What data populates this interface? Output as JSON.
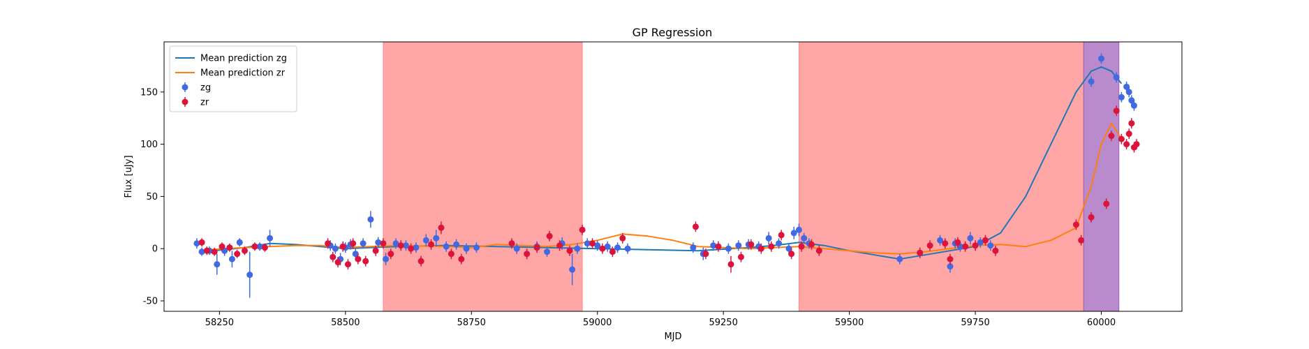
{
  "chart_data": {
    "type": "scatter",
    "title": "GP Regression",
    "xlabel": "MJD",
    "ylabel": "Flux [uJy]",
    "xlim": [
      58140,
      60160
    ],
    "ylim": [
      -60,
      198
    ],
    "xticks": [
      58250,
      58500,
      58750,
      59000,
      59250,
      59500,
      59750,
      60000
    ],
    "yticks": [
      -50,
      0,
      50,
      100,
      150
    ],
    "grid": false,
    "legend_position": "top-left",
    "shaded_regions": [
      {
        "x0": 58575,
        "x1": 58970,
        "color": "#ff8080"
      },
      {
        "x0": 59400,
        "x1": 59965,
        "color": "#ff8080"
      },
      {
        "x0": 59965,
        "x1": 60035,
        "color": "#9b59b6"
      }
    ],
    "lines": [
      {
        "name": "Mean prediction zg",
        "color": "#1f77b4",
        "x": [
          58210,
          58260,
          58300,
          58350,
          58400,
          58450,
          58500,
          58550,
          58600,
          58700,
          58800,
          58900,
          59000,
          59100,
          59200,
          59300,
          59350,
          59400,
          59450,
          59500,
          59550,
          59600,
          59650,
          59700,
          59750,
          59800,
          59850,
          59900,
          59950,
          59980,
          60000,
          60020,
          60040
        ],
        "y": [
          -3,
          -1,
          1,
          5,
          4,
          2,
          0,
          1,
          2,
          3,
          2,
          1,
          0,
          -1,
          -2,
          1,
          3,
          6,
          3,
          -2,
          -6,
          -10,
          -6,
          -2,
          2,
          15,
          50,
          100,
          150,
          170,
          174,
          170,
          158
        ]
      },
      {
        "name": "Mean prediction zr",
        "color": "#ff7f0e",
        "x": [
          58210,
          58260,
          58300,
          58350,
          58400,
          58450,
          58500,
          58550,
          58600,
          58700,
          58750,
          58800,
          58900,
          58950,
          59000,
          59050,
          59100,
          59150,
          59200,
          59250,
          59300,
          59350,
          59400,
          59450,
          59500,
          59550,
          59600,
          59650,
          59700,
          59750,
          59800,
          59850,
          59900,
          59950,
          59980,
          60000,
          60020,
          60040
        ],
        "y": [
          -2,
          0,
          1,
          2,
          3,
          3,
          1,
          2,
          3,
          2,
          1,
          4,
          2,
          4,
          8,
          14,
          12,
          8,
          2,
          1,
          0,
          1,
          2,
          0,
          -2,
          -4,
          -5,
          -3,
          0,
          3,
          4,
          2,
          8,
          20,
          60,
          100,
          120,
          105
        ]
      }
    ],
    "series": [
      {
        "name": "zg",
        "color": "#4169e1",
        "x": [
          58205,
          58215,
          58230,
          58245,
          58260,
          58275,
          58290,
          58310,
          58330,
          58350,
          58470,
          58480,
          58490,
          58500,
          58510,
          58520,
          58535,
          58550,
          58565,
          58580,
          58600,
          58620,
          58640,
          58660,
          58680,
          58700,
          58720,
          58740,
          58760,
          58840,
          58880,
          58900,
          58930,
          58950,
          58960,
          58980,
          59000,
          59020,
          59040,
          59060,
          59190,
          59210,
          59230,
          59260,
          59280,
          59300,
          59320,
          59340,
          59360,
          59380,
          59390,
          59400,
          59410,
          59420,
          59600,
          59640,
          59680,
          59700,
          59710,
          59720,
          59740,
          59760,
          59780,
          59980,
          60000,
          60030,
          60040,
          60050,
          60055,
          60060,
          60065
        ],
        "y": [
          5,
          -3,
          -2,
          -15,
          -2,
          -10,
          6,
          -25,
          2,
          10,
          3,
          0,
          -10,
          1,
          4,
          -5,
          5,
          28,
          6,
          -10,
          5,
          3,
          1,
          8,
          10,
          2,
          4,
          0,
          1,
          0,
          2,
          -3,
          5,
          -20,
          0,
          5,
          3,
          2,
          1,
          0,
          1,
          -5,
          3,
          0,
          3,
          4,
          2,
          10,
          5,
          0,
          15,
          18,
          10,
          5,
          -10,
          -4,
          8,
          -17,
          5,
          2,
          10,
          6,
          3,
          160,
          182,
          164,
          145,
          155,
          150,
          142,
          137
        ],
        "yerr": [
          5,
          4,
          4,
          10,
          5,
          8,
          4,
          22,
          4,
          8,
          5,
          5,
          6,
          5,
          5,
          5,
          5,
          8,
          5,
          6,
          5,
          5,
          5,
          6,
          8,
          5,
          5,
          5,
          5,
          5,
          5,
          5,
          6,
          15,
          5,
          5,
          5,
          5,
          5,
          5,
          5,
          6,
          5,
          5,
          5,
          5,
          5,
          6,
          5,
          5,
          6,
          6,
          5,
          5,
          5,
          5,
          5,
          6,
          5,
          5,
          6,
          5,
          5,
          5,
          5,
          5,
          5,
          5,
          5,
          5,
          5
        ]
      },
      {
        "name": "zr",
        "color": "#dc143c",
        "x": [
          58215,
          58225,
          58240,
          58255,
          58270,
          58285,
          58300,
          58320,
          58340,
          58465,
          58475,
          58485,
          58495,
          58505,
          58515,
          58525,
          58540,
          58560,
          58575,
          58590,
          58610,
          58630,
          58650,
          58670,
          58690,
          58710,
          58730,
          58830,
          58860,
          58880,
          58905,
          58925,
          58945,
          58970,
          58990,
          59010,
          59030,
          59050,
          59195,
          59215,
          59240,
          59265,
          59285,
          59305,
          59325,
          59345,
          59365,
          59385,
          59405,
          59425,
          59440,
          59640,
          59660,
          59690,
          59700,
          59715,
          59730,
          59750,
          59770,
          59790,
          59950,
          59960,
          59980,
          60010,
          60020,
          60030,
          60040,
          60050,
          60055,
          60060,
          60065,
          60070
        ],
        "y": [
          6,
          -2,
          -3,
          2,
          1,
          -5,
          -2,
          2,
          1,
          5,
          -8,
          -13,
          2,
          -15,
          5,
          -10,
          -12,
          -2,
          5,
          -5,
          3,
          0,
          -12,
          4,
          20,
          -5,
          -10,
          5,
          -5,
          1,
          12,
          3,
          -2,
          18,
          5,
          0,
          -3,
          10,
          21,
          -5,
          2,
          -15,
          -8,
          4,
          0,
          2,
          13,
          -5,
          2,
          4,
          -2,
          -4,
          3,
          5,
          -10,
          6,
          2,
          3,
          8,
          -2,
          23,
          8,
          30,
          43,
          108,
          132,
          105,
          100,
          110,
          120,
          97,
          100
        ],
        "yerr": [
          4,
          4,
          4,
          4,
          4,
          4,
          4,
          4,
          4,
          5,
          5,
          5,
          5,
          5,
          5,
          5,
          5,
          5,
          5,
          5,
          5,
          5,
          5,
          5,
          6,
          5,
          5,
          5,
          5,
          5,
          5,
          5,
          5,
          5,
          5,
          5,
          5,
          5,
          5,
          5,
          5,
          8,
          5,
          5,
          5,
          5,
          5,
          5,
          5,
          5,
          5,
          5,
          5,
          5,
          5,
          5,
          5,
          5,
          5,
          5,
          5,
          5,
          5,
          5,
          5,
          5,
          5,
          5,
          5,
          5,
          5,
          5
        ]
      }
    ],
    "legend": [
      {
        "label": "Mean prediction zg",
        "kind": "line",
        "color": "#1f77b4"
      },
      {
        "label": "Mean prediction zr",
        "kind": "line",
        "color": "#ff7f0e"
      },
      {
        "label": "zg",
        "kind": "point",
        "color": "#4169e1"
      },
      {
        "label": "zr",
        "kind": "point",
        "color": "#dc143c"
      }
    ]
  }
}
